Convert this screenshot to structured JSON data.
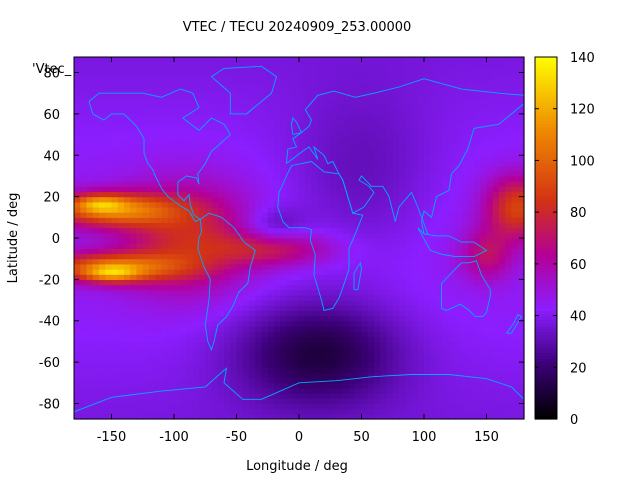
{
  "chart_data": {
    "type": "heatmap",
    "title": "VTEC / TECU 20240909_253.00000",
    "xlabel": "Longitude / deg",
    "ylabel": "Latitude / deg",
    "legend_label": "'Vtec_",
    "xlim": [
      -180,
      180
    ],
    "ylim": [
      -87.5,
      87.5
    ],
    "xticks": [
      -150,
      -100,
      -50,
      0,
      50,
      100,
      150
    ],
    "yticks": [
      -80,
      -60,
      -40,
      -20,
      0,
      20,
      40,
      60,
      80
    ],
    "grid": false,
    "colorbar": {
      "range": [
        0,
        140
      ],
      "ticks": [
        0,
        20,
        40,
        60,
        80,
        100,
        120,
        140
      ],
      "palette": "black-purple-red-orange-yellow",
      "placement": "right"
    },
    "grid_spacing": {
      "lon_deg": 5,
      "lat_deg": 2.5
    },
    "features": [
      {
        "name": "equatorial-crest-north-pacific",
        "lon": -155,
        "lat": 15,
        "tec": 132
      },
      {
        "name": "equatorial-crest-south-pacific",
        "lon": -150,
        "lat": -17,
        "tec": 128
      },
      {
        "name": "crest-west-pacific",
        "lon": 170,
        "lat": 12,
        "tec": 95
      },
      {
        "name": "south-atlantic-band",
        "lon": -30,
        "lat": -5,
        "tec": 85
      },
      {
        "name": "south-atlantic-minimum",
        "lon": 15,
        "lat": -55,
        "tec": 8
      }
    ],
    "background_tec": 40,
    "coastlines": true,
    "coastline_color": "#00aaff"
  }
}
